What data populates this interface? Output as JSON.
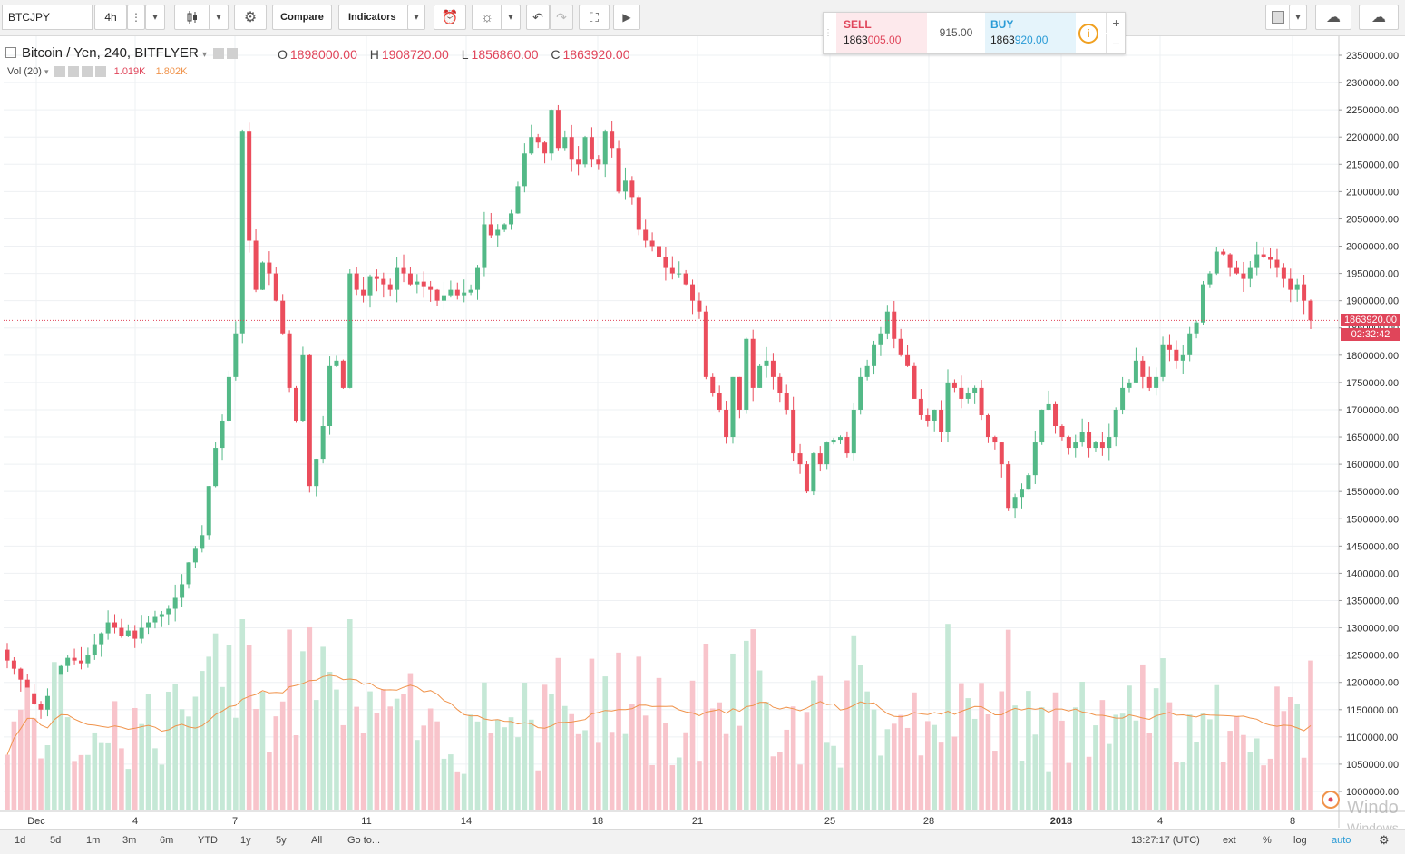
{
  "toolbar": {
    "symbol": "BTCJPY",
    "interval": "4h",
    "compare_label": "Compare",
    "indicators_label": "Indicators"
  },
  "trade_panel": {
    "sell_label": "SELL",
    "sell_price_prefix": "1863",
    "sell_price_highlight": "005.00",
    "spread": "915.00",
    "buy_label": "BUY",
    "buy_price_prefix": "1863",
    "buy_price_highlight": "920.00",
    "info_label": "i",
    "plus_label": "+",
    "minus_label": "−"
  },
  "legend": {
    "title": "Bitcoin / Yen, 240, BITFLYER",
    "open_key": "O",
    "open": "1898000.00",
    "high_key": "H",
    "high": "1908720.00",
    "low_key": "L",
    "low": "1856860.00",
    "close_key": "C",
    "close": "1863920.00"
  },
  "volume_legend": {
    "label": "Vol (20)",
    "value1": "1.019K",
    "value2": "1.802K"
  },
  "last_price_tag": "1863920.00",
  "countdown_tag": "02:32:42",
  "bottom": {
    "ranges": [
      "1d",
      "5d",
      "1m",
      "3m",
      "6m",
      "YTD",
      "1y",
      "5y",
      "All",
      "Go to..."
    ],
    "time": "13:27:17 (UTC)",
    "ext": "ext",
    "percent": "%",
    "log": "log",
    "auto": "auto"
  },
  "watermark": {
    "line1": "Windo",
    "line2": "Windows"
  },
  "colors": {
    "up": "#53b987",
    "down": "#eb4d5c",
    "up_vol": "#c5e8d6",
    "down_vol": "#f8c4cb",
    "ma": "#f0934b",
    "price_line": "#e0455a"
  },
  "chart_data": {
    "type": "candlestick",
    "y_axis_ticks": [
      "2350000.00",
      "2300000.00",
      "2250000.00",
      "2200000.00",
      "2150000.00",
      "2100000.00",
      "2050000.00",
      "2000000.00",
      "1950000.00",
      "1900000.00",
      "1850000.00",
      "1800000.00",
      "1750000.00",
      "1700000.00",
      "1650000.00",
      "1600000.00",
      "1550000.00",
      "1500000.00",
      "1450000.00",
      "1400000.00",
      "1350000.00",
      "1300000.00",
      "1250000.00",
      "1200000.00",
      "1150000.00",
      "1100000.00",
      "1050000.00",
      "1000000.00"
    ],
    "ylim": [
      990000,
      2370000
    ],
    "x_axis_labels": [
      "Dec",
      "4",
      "7",
      "11",
      "14",
      "18",
      "21",
      "25",
      "28",
      "2018",
      "4",
      "8"
    ],
    "close_values": [
      1240000,
      1225000,
      1205000,
      1180000,
      1160000,
      1150000,
      1175000,
      1210000,
      1230000,
      1245000,
      1240000,
      1235000,
      1250000,
      1270000,
      1290000,
      1310000,
      1300000,
      1285000,
      1295000,
      1280000,
      1300000,
      1310000,
      1320000,
      1325000,
      1335000,
      1355000,
      1380000,
      1420000,
      1445000,
      1470000,
      1560000,
      1630000,
      1680000,
      1760000,
      1840000,
      2210000,
      2010000,
      1920000,
      1970000,
      1950000,
      1900000,
      1840000,
      1740000,
      1680000,
      1800000,
      1560000,
      1610000,
      1670000,
      1780000,
      1790000,
      1740000,
      1950000,
      1920000,
      1910000,
      1945000,
      1940000,
      1930000,
      1920000,
      1960000,
      1950000,
      1930000,
      1935000,
      1925000,
      1920000,
      1900000,
      1910000,
      1920000,
      1910000,
      1915000,
      1920000,
      1960000,
      2040000,
      2020000,
      2030000,
      2040000,
      2060000,
      2110000,
      2170000,
      2200000,
      2190000,
      2170000,
      2250000,
      2180000,
      2200000,
      2160000,
      2150000,
      2200000,
      2160000,
      2150000,
      2210000,
      2180000,
      2100000,
      2120000,
      2090000,
      2030000,
      2010000,
      2000000,
      1980000,
      1960000,
      1950000,
      1950000,
      1930000,
      1900000,
      1880000,
      1760000,
      1730000,
      1700000,
      1650000,
      1760000,
      1700000,
      1830000,
      1740000,
      1780000,
      1790000,
      1760000,
      1730000,
      1700000,
      1620000,
      1600000,
      1550000,
      1620000,
      1600000,
      1640000,
      1645000,
      1650000,
      1620000,
      1700000,
      1760000,
      1780000,
      1820000,
      1840000,
      1880000,
      1830000,
      1800000,
      1780000,
      1720000,
      1690000,
      1680000,
      1700000,
      1660000,
      1750000,
      1740000,
      1720000,
      1730000,
      1740000,
      1690000,
      1650000,
      1640000,
      1600000,
      1520000,
      1540000,
      1555000,
      1580000,
      1640000,
      1700000,
      1710000,
      1670000,
      1650000,
      1630000,
      1640000,
      1660000,
      1630000,
      1640000,
      1630000,
      1650000,
      1700000,
      1740000,
      1750000,
      1790000,
      1760000,
      1740000,
      1760000,
      1820000,
      1810000,
      1790000,
      1800000,
      1840000,
      1860000,
      1930000,
      1950000,
      1990000,
      1985000,
      1960000,
      1950000,
      1940000,
      1960000,
      1985000,
      1980000,
      1975000,
      1960000,
      1940000,
      1920000,
      1930000,
      1900000,
      1863920
    ]
  }
}
